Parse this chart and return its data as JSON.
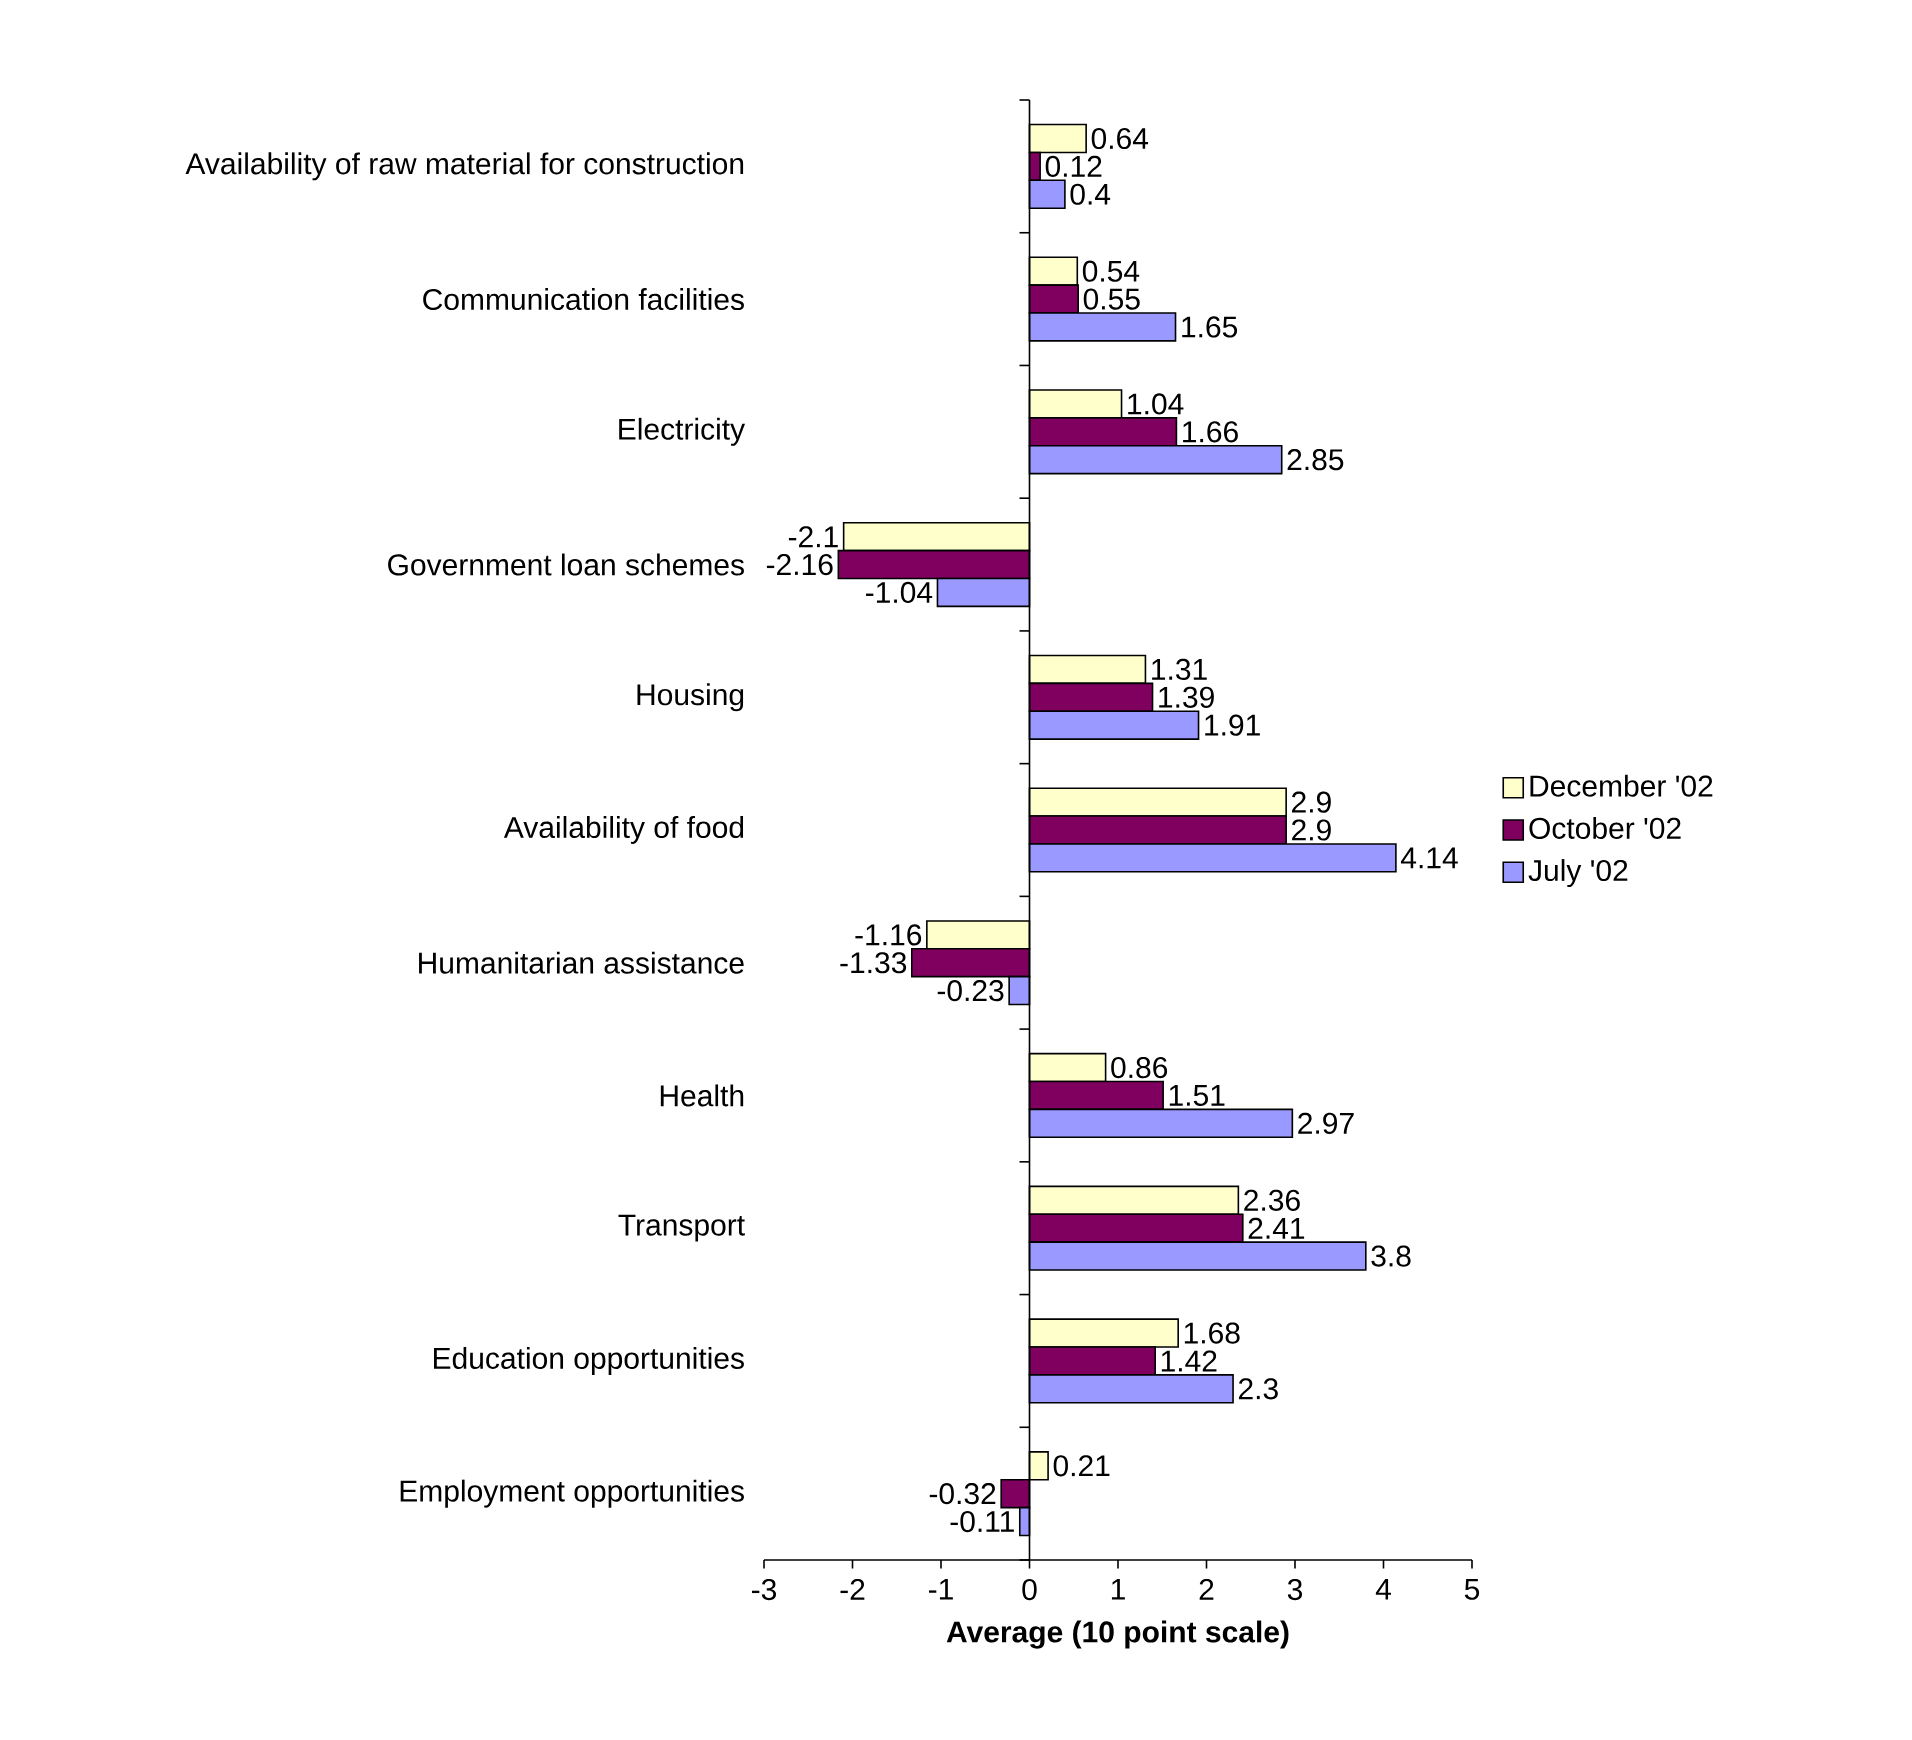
{
  "chart_data": {
    "type": "bar",
    "orientation": "horizontal",
    "xlabel": "Average (10 point scale)",
    "categories": [
      "Availability of raw material for construction",
      "Communication facilities",
      "Electricity",
      "Government loan schemes",
      "Housing",
      "Availability of food",
      "Humanitarian assistance",
      "Health",
      "Transport",
      "Education opportunities",
      "Employment opportunities"
    ],
    "series": [
      {
        "name": "December '02",
        "color": "#ffffcc",
        "values": [
          0.64,
          0.54,
          1.04,
          -2.1,
          1.31,
          2.9,
          -1.16,
          0.86,
          2.36,
          1.68,
          0.21
        ]
      },
      {
        "name": "October '02",
        "color": "#800060",
        "values": [
          0.12,
          0.55,
          1.66,
          -2.16,
          1.39,
          2.9,
          -1.33,
          1.51,
          2.41,
          1.42,
          -0.32
        ]
      },
      {
        "name": "July '02",
        "color": "#9999ff",
        "values": [
          0.4,
          1.65,
          2.85,
          -1.04,
          1.91,
          4.14,
          -0.23,
          2.97,
          3.8,
          2.3,
          -0.11
        ]
      }
    ],
    "xlim": [
      -3,
      5
    ],
    "xticks": [
      -3,
      -2,
      -1,
      0,
      1,
      2,
      3,
      4,
      5
    ],
    "data_labels": true,
    "legend": "right"
  }
}
